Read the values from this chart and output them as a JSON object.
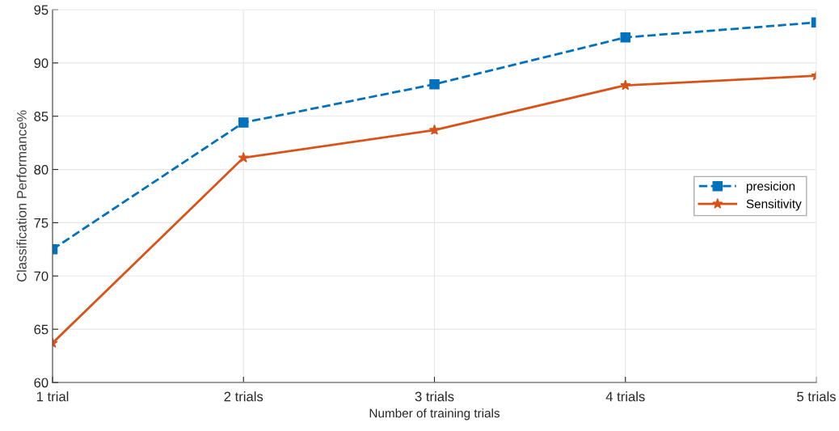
{
  "chart_data": {
    "type": "line",
    "xlabel": "Number of training trials",
    "ylabel": "Classification Performance%",
    "categories": [
      "1 trial",
      "2 trials",
      "3 trials",
      "4 trials",
      "5 trials"
    ],
    "series": [
      {
        "name": "presicion",
        "color": "#0072bd",
        "values": [
          72.5,
          84.4,
          88.0,
          92.4,
          93.8
        ],
        "marker": "square",
        "line_style": "dashed"
      },
      {
        "name": "Sensitivity",
        "color": "#d95319",
        "values": [
          63.7,
          81.1,
          83.7,
          87.9,
          88.8
        ],
        "marker": "star",
        "line_style": "solid"
      }
    ],
    "ylim": [
      60,
      95
    ],
    "yticks": [
      60,
      65,
      70,
      75,
      80,
      85,
      90,
      95
    ],
    "grid": true,
    "legend": "center right"
  }
}
